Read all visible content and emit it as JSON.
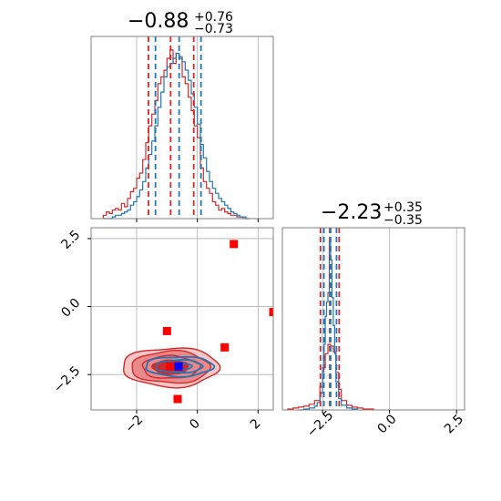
{
  "colors": {
    "red": "#d62728",
    "blue": "#1f77b4",
    "red_fill_dark": "#d62728",
    "red_fill_mid": "#e88a8b",
    "red_fill_light": "#f6c6c6",
    "marker_red": "#ff0000",
    "marker_blue": "#0000ff",
    "grid": "#b0b0b0",
    "frame": "#808080"
  },
  "chart_data": [
    {
      "type": "histogram",
      "panel": "marginal-param-1",
      "title": {
        "median": "−0.88",
        "plus": "+0.76",
        "minus": "−0.73"
      },
      "xlim": [
        -3.5,
        2.5
      ],
      "grid": true,
      "series": [
        {
          "color": "#d62728",
          "quantiles": [
            -1.61,
            -0.88,
            -0.12
          ],
          "bin_edges": [
            -3.1,
            -3.0,
            -2.9,
            -2.8,
            -2.7,
            -2.6,
            -2.5,
            -2.4,
            -2.3,
            -2.2,
            -2.1,
            -2.0,
            -1.9,
            -1.8,
            -1.7,
            -1.6,
            -1.5,
            -1.4,
            -1.3,
            -1.2,
            -1.1,
            -1.0,
            -0.9,
            -0.8,
            -0.7,
            -0.6,
            -0.5,
            -0.4,
            -0.3,
            -0.2,
            -0.1,
            0.0,
            0.1,
            0.2,
            0.3,
            0.4,
            0.5,
            0.6,
            0.7,
            0.8,
            0.9,
            1.0,
            1.1,
            1.2,
            1.3,
            1.4,
            1.5,
            1.6,
            1.7
          ],
          "counts": [
            2,
            4,
            3,
            5,
            6,
            5,
            9,
            7,
            12,
            16,
            18,
            24,
            27,
            35,
            45,
            55,
            62,
            70,
            80,
            84,
            88,
            95,
            100,
            92,
            98,
            95,
            84,
            80,
            72,
            64,
            55,
            48,
            30,
            22,
            18,
            15,
            10,
            8,
            5,
            6,
            4,
            3,
            2,
            2,
            1,
            1,
            0,
            0
          ]
        },
        {
          "color": "#1f77b4",
          "quantiles": [
            -1.38,
            -0.6,
            0.12
          ],
          "bin_edges": [
            -3.1,
            -3.0,
            -2.9,
            -2.8,
            -2.7,
            -2.6,
            -2.5,
            -2.4,
            -2.3,
            -2.2,
            -2.1,
            -2.0,
            -1.9,
            -1.8,
            -1.7,
            -1.6,
            -1.5,
            -1.4,
            -1.3,
            -1.2,
            -1.1,
            -1.0,
            -0.9,
            -0.8,
            -0.7,
            -0.6,
            -0.5,
            -0.4,
            -0.3,
            -0.2,
            -0.1,
            0.0,
            0.1,
            0.2,
            0.3,
            0.4,
            0.5,
            0.6,
            0.7,
            0.8,
            0.9,
            1.0,
            1.1,
            1.2,
            1.3,
            1.4,
            1.5,
            1.6,
            1.7
          ],
          "counts": [
            0,
            0,
            0,
            1,
            2,
            2,
            3,
            4,
            5,
            8,
            10,
            13,
            17,
            22,
            30,
            38,
            46,
            55,
            66,
            75,
            84,
            90,
            92,
            95,
            98,
            96,
            93,
            88,
            82,
            74,
            66,
            56,
            44,
            36,
            28,
            22,
            18,
            15,
            12,
            10,
            8,
            6,
            4,
            3,
            2,
            1,
            1,
            0
          ]
        }
      ]
    },
    {
      "type": "histogram",
      "panel": "marginal-param-2",
      "title": {
        "median": "−2.23",
        "plus": "+0.35",
        "minus": "−0.35"
      },
      "xlim": [
        -4.0,
        2.8
      ],
      "xticks": [
        "−2.5",
        "0.0",
        "2.5"
      ],
      "grid": true,
      "series": [
        {
          "color": "#d62728",
          "quantiles": [
            -2.58,
            -2.23,
            -1.88
          ],
          "bin_edges": [
            -3.8,
            -3.6,
            -3.4,
            -3.2,
            -3.0,
            -2.8,
            -2.6,
            -2.5,
            -2.4,
            -2.3,
            -2.2,
            -2.1,
            -2.0,
            -1.9,
            -1.8,
            -1.6,
            -1.4,
            -1.2,
            -1.0,
            -0.8,
            -0.6
          ],
          "counts": [
            1,
            2,
            3,
            4,
            6,
            10,
            25,
            45,
            60,
            70,
            68,
            62,
            40,
            22,
            10,
            5,
            3,
            2,
            1,
            1
          ]
        },
        {
          "color": "#1f77b4",
          "quantiles": [
            -2.45,
            -2.2,
            -1.98
          ],
          "bin_edges": [
            -3.4,
            -3.2,
            -3.0,
            -2.8,
            -2.7,
            -2.6,
            -2.5,
            -2.45,
            -2.4,
            -2.35,
            -2.3,
            -2.25,
            -2.2,
            -2.15,
            -2.1,
            -2.05,
            -2.0,
            -1.9,
            -1.8,
            -1.6,
            -1.4,
            -1.2
          ],
          "counts": [
            0,
            1,
            2,
            4,
            8,
            18,
            40,
            70,
            100,
            115,
            125,
            180,
            160,
            120,
            90,
            60,
            30,
            12,
            5,
            2,
            1
          ]
        }
      ]
    },
    {
      "type": "contour-scatter",
      "panel": "joint-param-1-vs-param-2",
      "xlim": [
        -3.5,
        2.5
      ],
      "ylim": [
        -3.8,
        2.9
      ],
      "xticks": [
        "−2",
        "0",
        "2"
      ],
      "yticks": [
        "2.5",
        "0.0",
        "−2.5"
      ],
      "grid": true,
      "red_contours": {
        "center": [
          -0.88,
          -2.23
        ],
        "levels_sigma": [
          [
            2.7,
            0.55
          ],
          [
            2.2,
            0.45
          ],
          [
            1.6,
            0.32
          ],
          [
            1.0,
            0.2
          ]
        ]
      },
      "blue_contours": {
        "center": [
          -0.6,
          -2.2
        ],
        "levels_sigma": [
          [
            1.9,
            0.28
          ],
          [
            1.3,
            0.18
          ],
          [
            0.7,
            0.1
          ]
        ]
      },
      "red_markers": [
        [
          1.2,
          2.3
        ],
        [
          2.5,
          -0.2
        ],
        [
          -1.0,
          -0.9
        ],
        [
          0.9,
          -1.5
        ],
        [
          -0.9,
          -2.2
        ],
        [
          -0.65,
          -3.4
        ]
      ],
      "blue_markers": [
        [
          -0.62,
          -2.2
        ]
      ]
    }
  ]
}
